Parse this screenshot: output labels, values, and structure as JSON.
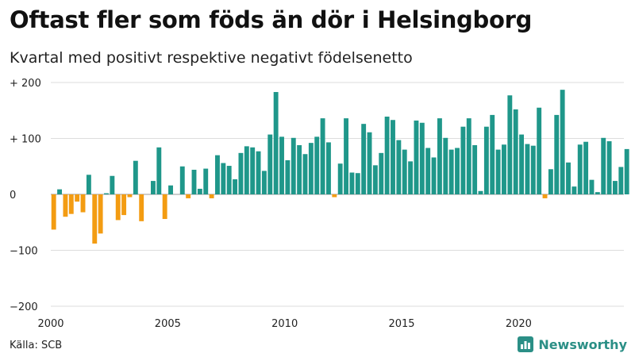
{
  "title": "Oftast fler som föds än dör i Helsingborg",
  "subtitle": "Kvartal med positivt respektive negativt födelsenetto",
  "footer": {
    "source": "Källa: SCB",
    "brand": "Newsworthy"
  },
  "colors": {
    "positive": "#1f978a",
    "negative": "#f39c12",
    "grid": "#dddddd",
    "zero": "#999999"
  },
  "chart_data": {
    "type": "bar",
    "title": "Oftast fler som föds än dör i Helsingborg",
    "subtitle": "Kvartal med positivt respektive negativt födelsenetto",
    "xlabel": "",
    "ylabel": "",
    "x_start": 2000,
    "periods_per_year": 4,
    "xlim": [
      2000,
      2024.5
    ],
    "ylim": [
      -200,
      200
    ],
    "y_ticks": [
      200,
      100,
      0,
      -100,
      -200
    ],
    "y_tick_labels": [
      "+ 200",
      "+ 100",
      "0",
      "−100",
      "−200"
    ],
    "x_ticks": [
      2000,
      2005,
      2010,
      2015,
      2020
    ],
    "x_tick_labels": [
      "2000",
      "2005",
      "2010",
      "2015",
      "2020"
    ],
    "grid": true,
    "values": [
      -63,
      9,
      -40,
      -35,
      -13,
      -32,
      35,
      -88,
      -70,
      2,
      33,
      -46,
      -37,
      -5,
      60,
      -48,
      0,
      24,
      84,
      -44,
      16,
      0,
      50,
      -7,
      44,
      10,
      46,
      -7,
      70,
      56,
      51,
      27,
      74,
      86,
      84,
      77,
      42,
      107,
      183,
      103,
      61,
      101,
      88,
      72,
      92,
      103,
      136,
      93,
      -5,
      55,
      136,
      39,
      38,
      126,
      111,
      52,
      74,
      139,
      133,
      97,
      80,
      59,
      132,
      128,
      83,
      66,
      136,
      101,
      80,
      83,
      121,
      136,
      88,
      6,
      121,
      142,
      80,
      89,
      177,
      152,
      107,
      90,
      87,
      155,
      -7,
      45,
      142,
      187,
      57,
      14,
      89,
      94,
      26,
      4,
      101,
      95,
      24,
      49,
      81
    ]
  }
}
